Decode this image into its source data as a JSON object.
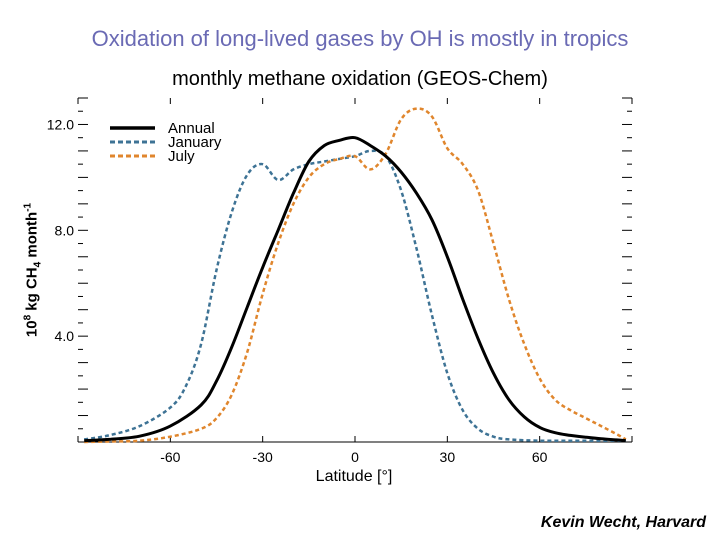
{
  "title": "Oxidation of long-lived gases by OH is mostly in tropics",
  "credit": "Kevin Wecht, Harvard",
  "colors": {
    "title": "#6a6ab4",
    "annual": "#000000",
    "january": "#3e7395",
    "july": "#e0862d"
  },
  "chart_data": {
    "type": "line",
    "title": "monthly methane oxidation (GEOS-Chem)",
    "xlabel": "Latitude [°]",
    "ylabel": {
      "prefix": "10",
      "exp": "8",
      "mid": " kg CH",
      "sub": "4",
      "suffix": " month",
      "exp2": "-1"
    },
    "xlim": [
      -90,
      90
    ],
    "ylim": [
      0,
      13
    ],
    "xticks": [
      -60,
      -30,
      0,
      30,
      60
    ],
    "xtick_labels": [
      "-60",
      "-30",
      "0",
      "30",
      "60"
    ],
    "yticks": [
      4,
      8,
      12
    ],
    "ytick_labels": [
      "4.0",
      "8.0",
      "12.0"
    ],
    "legend_position": "top-left",
    "series": [
      {
        "name": "Annual",
        "style": "solid",
        "color": "#000000",
        "x": [
          -88,
          -80,
          -70,
          -60,
          -50,
          -45,
          -40,
          -35,
          -30,
          -25,
          -20,
          -15,
          -10,
          -5,
          0,
          5,
          10,
          15,
          20,
          25,
          30,
          35,
          40,
          45,
          50,
          55,
          60,
          65,
          70,
          75,
          80,
          85,
          88
        ],
        "y": [
          0.05,
          0.1,
          0.22,
          0.6,
          1.4,
          2.3,
          3.6,
          5.1,
          6.6,
          8.0,
          9.4,
          10.6,
          11.2,
          11.4,
          11.5,
          11.2,
          10.8,
          10.2,
          9.4,
          8.4,
          7.0,
          5.4,
          3.9,
          2.6,
          1.6,
          0.95,
          0.55,
          0.35,
          0.25,
          0.18,
          0.12,
          0.08,
          0.05
        ]
      },
      {
        "name": "January",
        "style": "dashed",
        "color": "#3e7395",
        "x": [
          -88,
          -80,
          -70,
          -60,
          -55,
          -50,
          -45,
          -40,
          -35,
          -30,
          -25,
          -20,
          -15,
          -10,
          -5,
          0,
          5,
          10,
          15,
          20,
          25,
          30,
          35,
          40,
          45,
          50,
          60,
          70,
          80,
          88
        ],
        "y": [
          0.1,
          0.25,
          0.6,
          1.3,
          2.1,
          3.7,
          6.5,
          8.7,
          10.1,
          10.5,
          9.9,
          10.3,
          10.5,
          10.6,
          10.7,
          10.8,
          11.0,
          10.8,
          9.5,
          7.3,
          4.8,
          2.6,
          1.2,
          0.5,
          0.2,
          0.1,
          0.05,
          0.05,
          0.05,
          0.05
        ]
      },
      {
        "name": "July",
        "style": "dashed",
        "color": "#e0862d",
        "x": [
          -88,
          -80,
          -70,
          -60,
          -50,
          -45,
          -40,
          -35,
          -30,
          -25,
          -20,
          -15,
          -10,
          -5,
          0,
          5,
          10,
          15,
          20,
          25,
          30,
          35,
          40,
          45,
          50,
          55,
          60,
          65,
          70,
          75,
          80,
          85,
          88
        ],
        "y": [
          0.0,
          0.02,
          0.05,
          0.2,
          0.5,
          0.9,
          1.8,
          3.4,
          5.6,
          7.5,
          9.0,
          10.0,
          10.5,
          10.7,
          10.8,
          10.3,
          10.9,
          12.2,
          12.6,
          12.3,
          11.1,
          10.5,
          9.5,
          7.5,
          5.4,
          3.7,
          2.4,
          1.6,
          1.2,
          0.9,
          0.6,
          0.3,
          0.1
        ]
      }
    ]
  }
}
